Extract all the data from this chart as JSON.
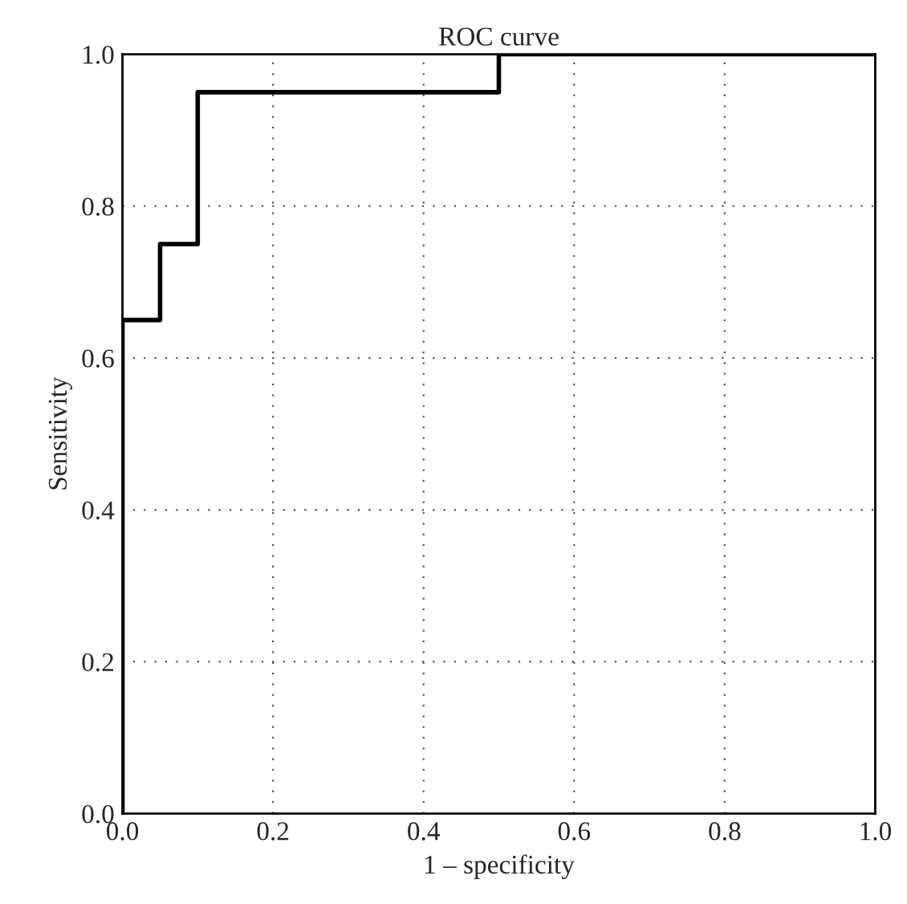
{
  "chart_data": {
    "type": "line",
    "title": "ROC curve",
    "xlabel": "1 – specificity",
    "ylabel": "Sensitivity",
    "series": [
      {
        "color": "#000000",
        "x": [
          0,
          0,
          0.05,
          0.05,
          0.1,
          0.1,
          0.5,
          0.5,
          1.0
        ],
        "values": [
          0,
          0.65,
          0.65,
          0.75,
          0.75,
          0.95,
          0.95,
          1.0,
          1.0
        ]
      }
    ],
    "xlim": [
      0,
      1
    ],
    "ylim": [
      0,
      1
    ],
    "xticks": [
      {
        "value": 0,
        "label": "0.0"
      },
      0.2,
      0.4,
      0.6,
      0.8,
      {
        "value": 1,
        "label": "1.0"
      }
    ],
    "yticks": [
      {
        "value": 0,
        "label": "0.0"
      },
      0.2,
      0.4,
      0.6,
      0.8,
      {
        "value": 1,
        "label": "1.0"
      }
    ],
    "grid": true,
    "line_style": "solid",
    "marker": "none"
  }
}
